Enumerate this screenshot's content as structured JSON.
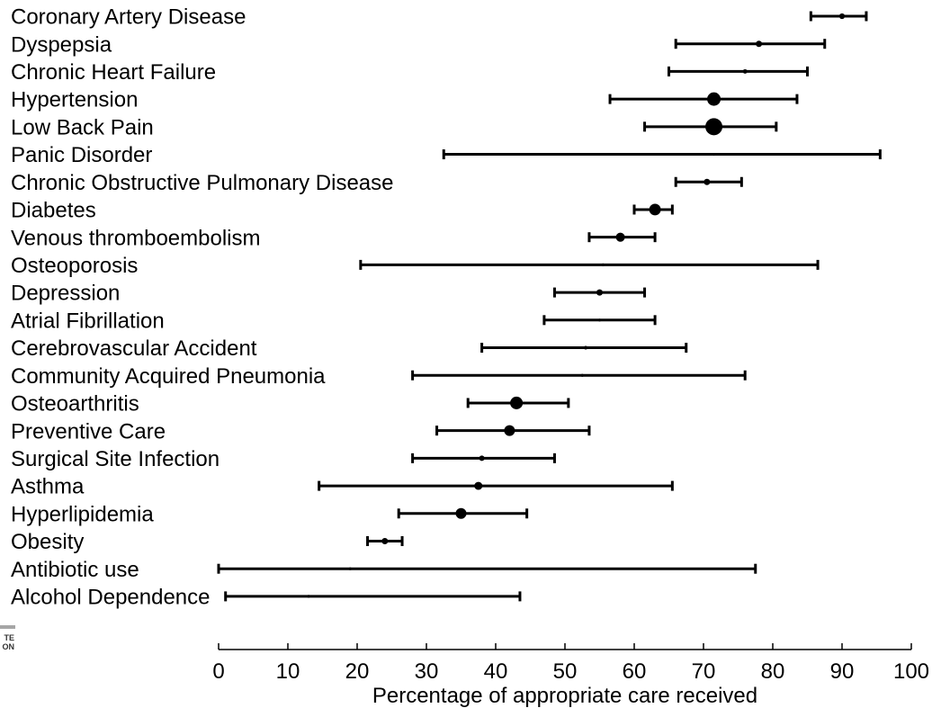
{
  "colors": {
    "marks": "#000000",
    "background": "#ffffff",
    "logo_bar": "#a6a6a6",
    "logo_text": "#333333"
  },
  "logo_fragment": {
    "lines": [
      "TE",
      "ON"
    ]
  },
  "chart_data": {
    "type": "scatter",
    "error_bars": true,
    "xlabel": "Percentage of appropriate care received",
    "xlim": [
      0,
      100
    ],
    "xticks": [
      0,
      10,
      20,
      30,
      40,
      50,
      60,
      70,
      80,
      90,
      100
    ],
    "grid": false,
    "legend": "none",
    "color": "#000000",
    "points": [
      {
        "category": "Coronary Artery Disease",
        "value": 90,
        "lower": 85.5,
        "upper": 93.5,
        "relative_weight": 0.33
      },
      {
        "category": "Dyspepsia",
        "value": 78,
        "lower": 66,
        "upper": 87.5,
        "relative_weight": 0.37
      },
      {
        "category": "Chronic Heart Failure",
        "value": 76,
        "lower": 65,
        "upper": 85,
        "relative_weight": 0.26
      },
      {
        "category": "Hypertension",
        "value": 71.5,
        "lower": 56.5,
        "upper": 83.5,
        "relative_weight": 0.79
      },
      {
        "category": "Low Back Pain",
        "value": 71.5,
        "lower": 61.5,
        "upper": 80.5,
        "relative_weight": 1.0
      },
      {
        "category": "Panic Disorder",
        "value": 71.5,
        "lower": 32.5,
        "upper": 95.5,
        "relative_weight": 0.16
      },
      {
        "category": "Chronic Obstructive Pulmonary Disease",
        "value": 70.5,
        "lower": 66,
        "upper": 75.5,
        "relative_weight": 0.37
      },
      {
        "category": "Diabetes",
        "value": 63,
        "lower": 60,
        "upper": 65.5,
        "relative_weight": 0.68
      },
      {
        "category": "Venous thromboembolism",
        "value": 58,
        "lower": 53.5,
        "upper": 63,
        "relative_weight": 0.53
      },
      {
        "category": "Osteoporosis",
        "value": 55.5,
        "lower": 20.5,
        "upper": 86.5,
        "relative_weight": 0.16
      },
      {
        "category": "Depression",
        "value": 55,
        "lower": 48.5,
        "upper": 61.5,
        "relative_weight": 0.37
      },
      {
        "category": "Atrial Fibrillation",
        "value": 55,
        "lower": 47,
        "upper": 63,
        "relative_weight": 0.16
      },
      {
        "category": "Cerebrovascular Accident",
        "value": 53,
        "lower": 38,
        "upper": 67.5,
        "relative_weight": 0.21
      },
      {
        "category": "Community Acquired Pneumonia",
        "value": 52.5,
        "lower": 28,
        "upper": 76,
        "relative_weight": 0.16
      },
      {
        "category": "Osteoarthritis",
        "value": 43,
        "lower": 36,
        "upper": 50.5,
        "relative_weight": 0.74
      },
      {
        "category": "Preventive Care",
        "value": 42,
        "lower": 31.5,
        "upper": 53.5,
        "relative_weight": 0.63
      },
      {
        "category": "Surgical Site Infection",
        "value": 38,
        "lower": 28,
        "upper": 48.5,
        "relative_weight": 0.32
      },
      {
        "category": "Asthma",
        "value": 37.5,
        "lower": 14.5,
        "upper": 65.5,
        "relative_weight": 0.47
      },
      {
        "category": "Hyperlipidemia",
        "value": 35,
        "lower": 26,
        "upper": 44.5,
        "relative_weight": 0.63
      },
      {
        "category": "Obesity",
        "value": 24,
        "lower": 21.5,
        "upper": 26.5,
        "relative_weight": 0.37
      },
      {
        "category": "Antibiotic use",
        "value": 19,
        "lower": 0,
        "upper": 77.5,
        "relative_weight": 0.11
      },
      {
        "category": "Alcohol Dependence",
        "value": 13,
        "lower": 1,
        "upper": 43.5,
        "relative_weight": 0.11
      }
    ]
  }
}
